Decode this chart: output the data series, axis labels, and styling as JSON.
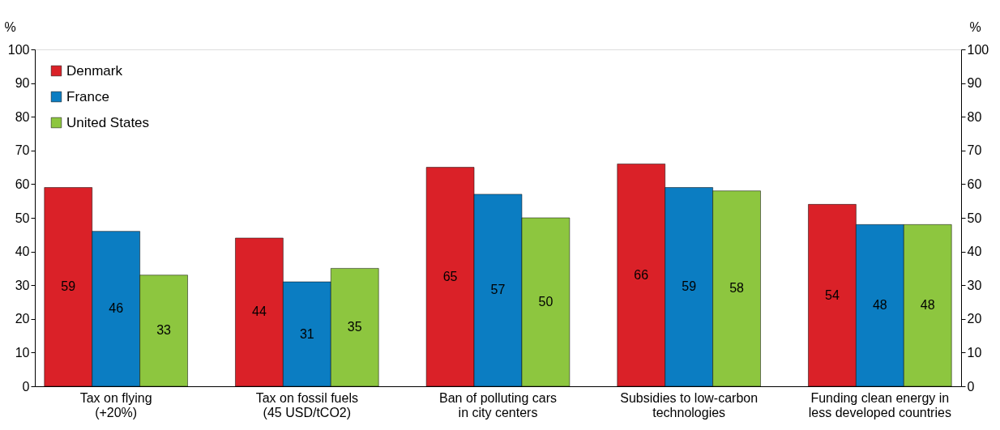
{
  "chart_data": {
    "type": "bar",
    "categories": [
      "Tax on flying\n(+20%)",
      "Tax on fossil fuels\n(45 USD/tCO2)",
      "Ban of polluting cars\nin city centers",
      "Subsidies to low-carbon\ntechnologies",
      "Funding clean energy in\nless developed countries"
    ],
    "series": [
      {
        "name": "Denmark",
        "color": "#da2128",
        "values": [
          59,
          44,
          65,
          66,
          54
        ]
      },
      {
        "name": "France",
        "color": "#0b7dc2",
        "values": [
          46,
          31,
          57,
          59,
          48
        ]
      },
      {
        "name": "United States",
        "color": "#8dc63f",
        "values": [
          33,
          35,
          50,
          58,
          48
        ]
      }
    ],
    "ylabel": "%",
    "y2label": "%",
    "ylim": [
      0,
      100
    ],
    "yticks": [
      0,
      10,
      20,
      30,
      40,
      50,
      60,
      70,
      80,
      90,
      100
    ],
    "y2lim": [
      0,
      100
    ],
    "y2ticks": [
      0,
      10,
      20,
      30,
      40,
      50,
      60,
      70,
      80,
      90,
      100
    ],
    "data_labels": true,
    "grid": false,
    "legend": "top left"
  }
}
